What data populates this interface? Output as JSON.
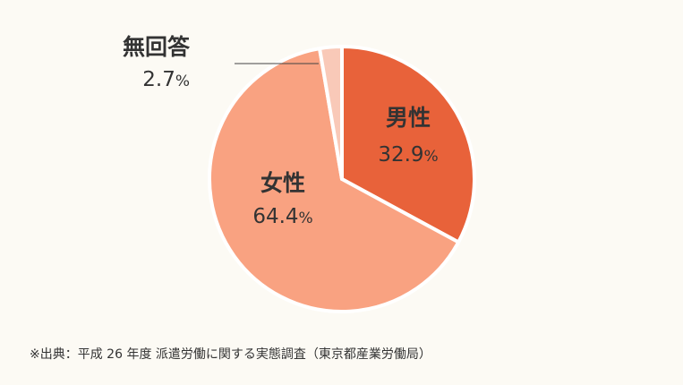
{
  "chart_data": {
    "type": "pie",
    "slices": [
      {
        "label": "男性",
        "value": 32.9,
        "unit": "%",
        "color": "#e8623a",
        "label_color": "#333333",
        "callout": false
      },
      {
        "label": "女性",
        "value": 64.4,
        "unit": "%",
        "color": "#f9a281",
        "label_color": "#333333",
        "callout": false
      },
      {
        "label": "無回答",
        "value": 2.7,
        "unit": "%",
        "color": "#f9c9b8",
        "label_color": "#333333",
        "callout": true
      }
    ],
    "start": "12 o'clock",
    "direction": "clockwise",
    "legend": "none",
    "separator_color": "#ffffff"
  },
  "source": "※出典：平成 26 年度 派遣労働に関する実態調査（東京都産業労働局）"
}
